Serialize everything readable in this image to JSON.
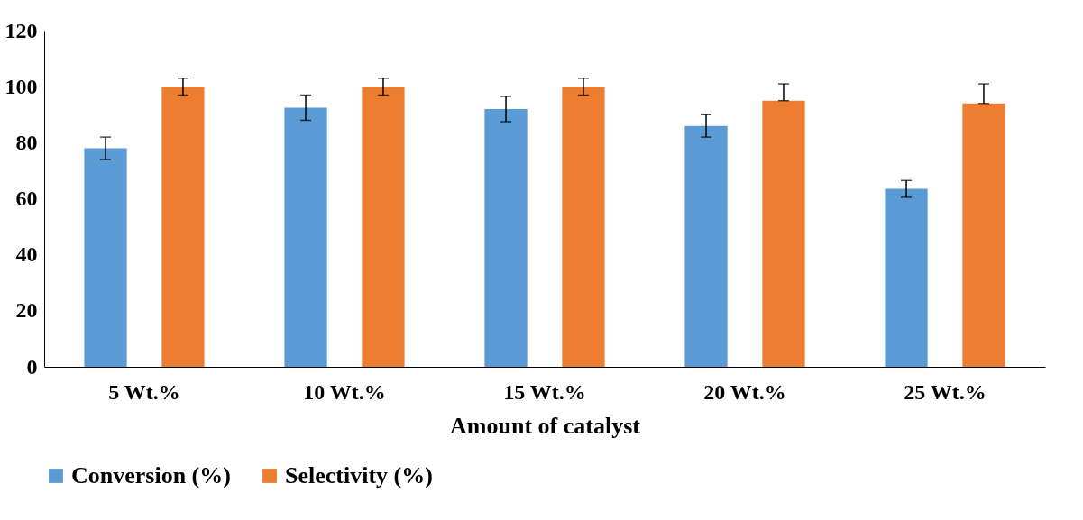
{
  "chart_data": {
    "type": "bar",
    "xlabel": "Amount of catalyst",
    "categories": [
      "5 Wt.%",
      "10 Wt.%",
      "15 Wt.%",
      "20 Wt.%",
      "25 Wt.%"
    ],
    "series": [
      {
        "name": "Conversion (%)",
        "color": "#5b9bd5",
        "values": [
          78,
          92.5,
          92,
          86,
          63.5
        ],
        "errors": [
          4,
          4.5,
          4.5,
          4,
          3
        ]
      },
      {
        "name": "Selectivity (%)",
        "color": "#ed7d31",
        "values": [
          100,
          100,
          100,
          95,
          94
        ],
        "errors": [
          3,
          3,
          3,
          [
            95,
            101
          ],
          [
            94,
            101
          ]
        ]
      }
    ],
    "ylim": [
      0,
      120
    ],
    "yticks": [
      0,
      20,
      40,
      60,
      80,
      100,
      120
    ],
    "grid": false,
    "legend": "bottom"
  }
}
